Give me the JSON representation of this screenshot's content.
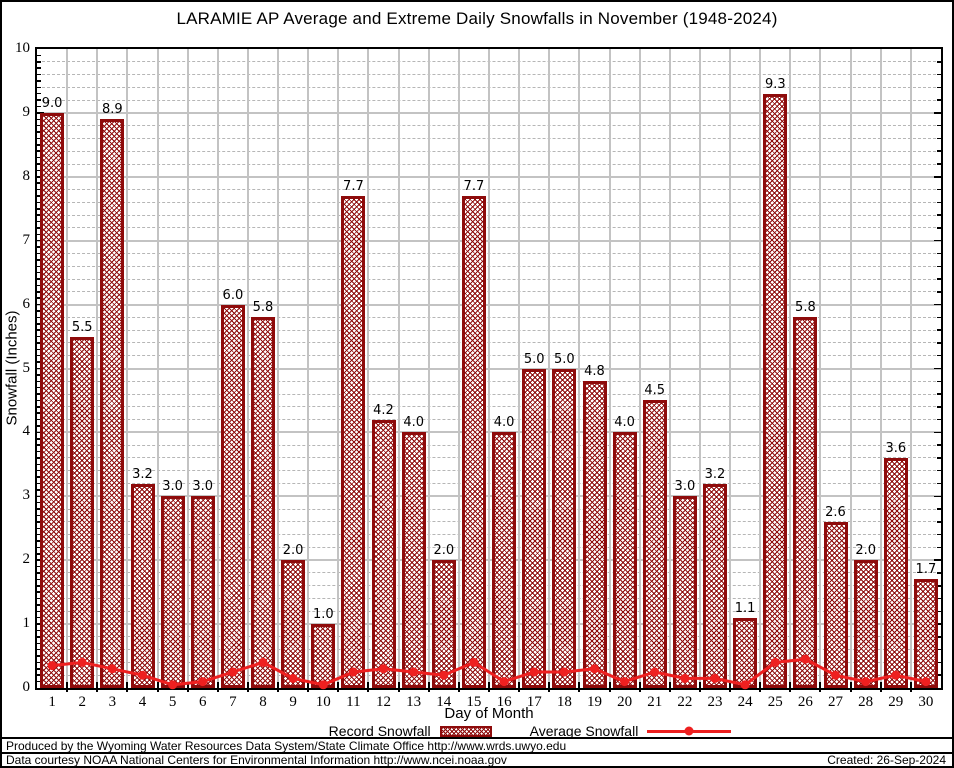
{
  "title": "LARAMIE AP Average and Extreme Daily Snowfalls in November (1948-2024)",
  "y_axis": {
    "label": "Snowfall (Inches)",
    "ticks": [
      "0",
      "1",
      "2",
      "3",
      "4",
      "5",
      "6",
      "7",
      "8",
      "9",
      "10"
    ]
  },
  "x_axis": {
    "label": "Day of Month"
  },
  "legend": {
    "record": "Record Snowfall",
    "average": "Average Snowfall"
  },
  "footer": {
    "line1": "Produced by the Wyoming Water Resources Data System/State Climate Office http://www.wrds.uwyo.edu",
    "line2": "Data courtesy NOAA National Centers for Environmental Information http://www.ncei.noaa.gov",
    "created": "Created: 26-Sep-2024"
  },
  "colors": {
    "bar_border": "#8e0b0b",
    "bar_hatch": "#8e0b0b",
    "average_line": "#ee2020",
    "grid_major": "#c3c3c3",
    "grid_minor": "#b6b6b6",
    "axis": "#000000"
  },
  "chart_data": {
    "type": "bar",
    "title": "LARAMIE AP Average and Extreme Daily Snowfalls in November (1948-2024)",
    "xlabel": "Day of Month",
    "ylabel": "Snowfall (Inches)",
    "ylim": [
      0,
      10
    ],
    "grid": true,
    "legend_position": "bottom",
    "categories": [
      1,
      2,
      3,
      4,
      5,
      6,
      7,
      8,
      9,
      10,
      11,
      12,
      13,
      14,
      15,
      16,
      17,
      18,
      19,
      20,
      21,
      22,
      23,
      24,
      25,
      26,
      27,
      28,
      29,
      30
    ],
    "series": [
      {
        "name": "Record Snowfall",
        "type": "bar",
        "values": [
          9.0,
          5.5,
          8.9,
          3.2,
          3.0,
          3.0,
          6.0,
          5.8,
          2.0,
          1.0,
          7.7,
          4.2,
          4.0,
          2.0,
          7.7,
          4.0,
          5.0,
          5.0,
          4.8,
          4.0,
          4.5,
          3.0,
          3.2,
          1.1,
          9.3,
          5.8,
          2.6,
          2.0,
          3.6,
          1.7
        ]
      },
      {
        "name": "Average Snowfall",
        "type": "line",
        "values": [
          0.35,
          0.4,
          0.3,
          0.2,
          0.05,
          0.1,
          0.25,
          0.4,
          0.15,
          0.05,
          0.25,
          0.3,
          0.25,
          0.2,
          0.4,
          0.1,
          0.25,
          0.25,
          0.3,
          0.1,
          0.25,
          0.15,
          0.15,
          0.05,
          0.4,
          0.45,
          0.2,
          0.1,
          0.2,
          0.1
        ]
      }
    ]
  }
}
